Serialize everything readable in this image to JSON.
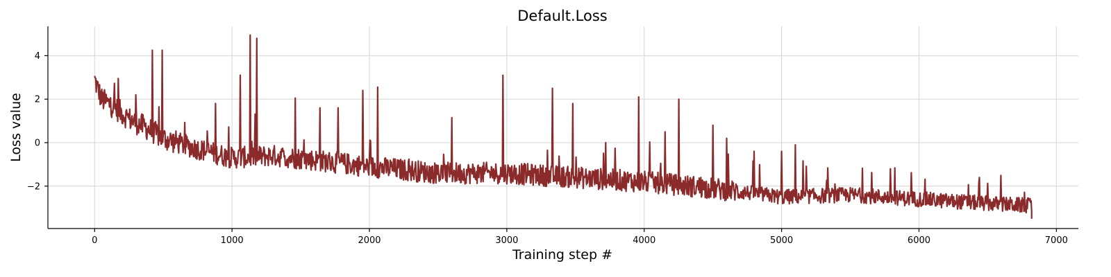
{
  "chart_data": {
    "type": "line",
    "title": "Default.Loss",
    "xlabel": "Training step #",
    "ylabel": "Loss value",
    "xlim": [
      -340,
      7160
    ],
    "ylim": [
      -3.95,
      5.35
    ],
    "x_ticks": [
      0,
      1000,
      2000,
      3000,
      4000,
      5000,
      6000,
      7000
    ],
    "x_tick_labels": [
      "0",
      "1000",
      "2000",
      "3000",
      "4000",
      "5000",
      "6000",
      "7000"
    ],
    "y_ticks": [
      -2,
      0,
      2,
      4
    ],
    "y_tick_labels": [
      "−2",
      "0",
      "2",
      "4"
    ],
    "grid": true,
    "series": [
      {
        "color": "#8b2a2a",
        "n_steps": 6820,
        "trend": [
          [
            0,
            2.9
          ],
          [
            50,
            2.0
          ],
          [
            150,
            1.6
          ],
          [
            250,
            1.1
          ],
          [
            400,
            0.6
          ],
          [
            500,
            0.2
          ],
          [
            700,
            -0.2
          ],
          [
            1000,
            -0.7
          ],
          [
            1300,
            -0.6
          ],
          [
            1600,
            -0.8
          ],
          [
            2000,
            -1.1
          ],
          [
            2500,
            -1.4
          ],
          [
            3000,
            -1.4
          ],
          [
            3500,
            -1.6
          ],
          [
            4000,
            -1.8
          ],
          [
            4500,
            -2.1
          ],
          [
            5000,
            -2.5
          ],
          [
            5500,
            -2.4
          ],
          [
            6000,
            -2.6
          ],
          [
            6500,
            -2.8
          ],
          [
            6820,
            -2.9
          ]
        ],
        "spikes": [
          [
            170,
            2.95
          ],
          [
            300,
            2.2
          ],
          [
            420,
            4.25
          ],
          [
            490,
            4.25
          ],
          [
            880,
            1.8
          ],
          [
            1060,
            3.1
          ],
          [
            1130,
            4.95
          ],
          [
            1180,
            4.8
          ],
          [
            1460,
            2.05
          ],
          [
            1640,
            1.6
          ],
          [
            1770,
            1.6
          ],
          [
            1950,
            2.4
          ],
          [
            2060,
            2.55
          ],
          [
            2600,
            1.15
          ],
          [
            2970,
            3.1
          ],
          [
            3330,
            2.5
          ],
          [
            3480,
            1.8
          ],
          [
            3720,
            0.0
          ],
          [
            3960,
            2.1
          ],
          [
            4150,
            0.5
          ],
          [
            4250,
            2.0
          ],
          [
            4500,
            0.8
          ],
          [
            4600,
            0.2
          ],
          [
            4800,
            -0.4
          ],
          [
            5000,
            -0.4
          ],
          [
            5100,
            -0.1
          ],
          [
            5790,
            -1.2
          ],
          [
            6440,
            -1.6
          ]
        ],
        "last_point": [
          6820,
          -3.5
        ]
      }
    ]
  }
}
